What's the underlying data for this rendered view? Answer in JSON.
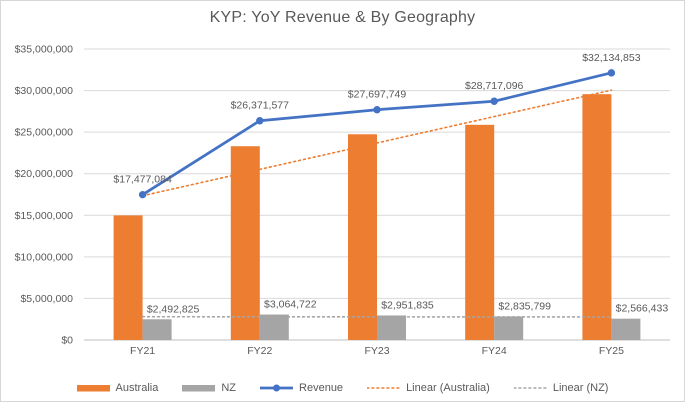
{
  "title": "KYP: YoY Revenue & By Geography",
  "colors": {
    "australia": "#ED7D31",
    "nz": "#A5A5A5",
    "revenue_line": "#4472C4",
    "text": "#595959",
    "gridline": "#D9D9D9",
    "axis_line": "#BFBFBF"
  },
  "chart_data": {
    "type": "bar",
    "subtype": "combo-clustered-bar-with-line-and-trendlines",
    "title": "KYP: YoY Revenue & By Geography",
    "categories": [
      "FY21",
      "FY22",
      "FY23",
      "FY24",
      "FY25"
    ],
    "y_axis": {
      "min": 0,
      "max": 35000000,
      "tick_step": 5000000,
      "tick_labels": [
        "$0",
        "$5,000,000",
        "$10,000,000",
        "$15,000,000",
        "$20,000,000",
        "$25,000,000",
        "$30,000,000",
        "$35,000,000"
      ]
    },
    "grid": true,
    "legend_position": "bottom",
    "series": [
      {
        "name": "Australia",
        "type": "bar",
        "color": "#ED7D31",
        "values": [
          14984259,
          23306855,
          24745914,
          25881297,
          29568420
        ]
      },
      {
        "name": "NZ",
        "type": "bar",
        "color": "#A5A5A5",
        "values": [
          2492825,
          3064722,
          2951835,
          2835799,
          2566433
        ],
        "data_labels": [
          "$2,492,825",
          "$3,064,722",
          "$2,951,835",
          "$2,835,799",
          "$2,566,433"
        ]
      },
      {
        "name": "Revenue",
        "type": "line",
        "color": "#4472C4",
        "values": [
          17477084,
          26371577,
          27697749,
          28717096,
          32134853
        ],
        "data_labels": [
          "$17,477,084",
          "$26,371,577",
          "$27,697,749",
          "$28,717,096",
          "$32,134,853"
        ]
      },
      {
        "name": "Linear (Australia)",
        "type": "trendline",
        "source": "Australia",
        "style": "dotted",
        "color": "#ED7D31"
      },
      {
        "name": "Linear (NZ)",
        "type": "trendline",
        "source": "NZ",
        "style": "dotted",
        "color": "#A5A5A5"
      }
    ]
  }
}
